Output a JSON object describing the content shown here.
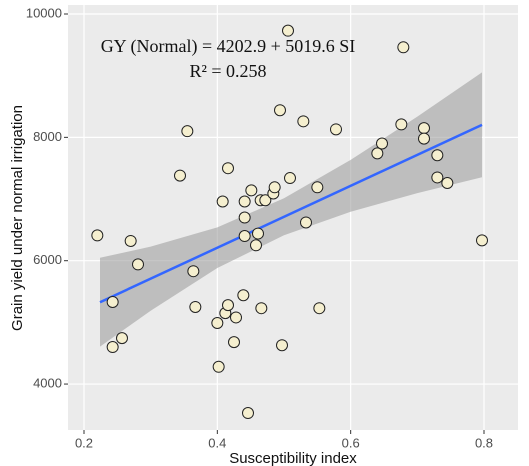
{
  "chart_data": {
    "type": "scatter",
    "annotations": [
      "GY (Normal) = 4202.9 + 5019.6 SI",
      "R² = 0.258"
    ],
    "x_label": "Susceptibility index",
    "y_label": "Grain yield under normal irrigation",
    "xlim": [
      0.176,
      0.851
    ],
    "ylim": [
      3255,
      10146
    ],
    "xticks": [
      0.2,
      0.4,
      0.6,
      0.8
    ],
    "yticks": [
      4000,
      6000,
      8000,
      10000
    ],
    "grid": true,
    "point_color": "#f5efcf",
    "x": [
      0.22,
      0.27,
      0.281,
      0.243,
      0.257,
      0.243,
      0.364,
      0.355,
      0.344,
      0.367,
      0.4,
      0.402,
      0.412,
      0.416,
      0.428,
      0.425,
      0.439,
      0.408,
      0.416,
      0.441,
      0.451,
      0.441,
      0.441,
      0.458,
      0.461,
      0.465,
      0.472,
      0.484,
      0.486,
      0.466,
      0.446,
      0.497,
      0.509,
      0.494,
      0.506,
      0.529,
      0.533,
      0.55,
      0.578,
      0.553,
      0.64,
      0.647,
      0.676,
      0.679,
      0.71,
      0.71,
      0.73,
      0.73,
      0.745,
      0.797
    ],
    "values": [
      6410,
      6320,
      5940,
      5330,
      4745,
      4600,
      5830,
      8100,
      7380,
      5250,
      4990,
      4280,
      5150,
      5280,
      5080,
      4680,
      5440,
      6960,
      7500,
      6960,
      7140,
      6700,
      6400,
      6250,
      6440,
      6980,
      6980,
      7090,
      7190,
      5230,
      3530,
      4630,
      7340,
      8440,
      9730,
      8260,
      6620,
      7190,
      8130,
      5230,
      7740,
      7900,
      8210,
      9460,
      8150,
      7980,
      7710,
      7350,
      7260,
      6330
    ],
    "fit_line": {
      "color": "#3366ff",
      "x": [
        0.224,
        0.797
      ],
      "values": [
        5327,
        8203
      ]
    },
    "band": {
      "color": "#999999",
      "x": [
        0.224,
        0.3,
        0.4,
        0.5,
        0.6,
        0.7,
        0.797
      ],
      "lower": [
        4607,
        5189,
        5881,
        6413,
        6794,
        7096,
        7353
      ],
      "upper": [
        6047,
        6229,
        6541,
        7013,
        7634,
        8336,
        9053
      ]
    }
  }
}
